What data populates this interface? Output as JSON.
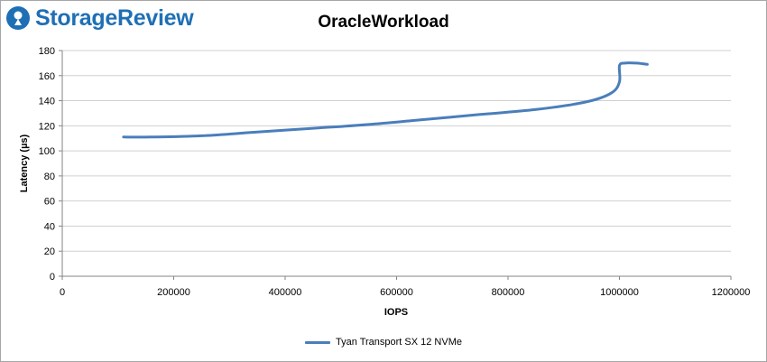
{
  "brand": {
    "name": "StorageReview",
    "color": "#1f6fb5"
  },
  "chart_data": {
    "type": "line",
    "title": "OracleWorkload",
    "xlabel": "IOPS",
    "ylabel": "Latency (µs)",
    "xlim": [
      0,
      1200000
    ],
    "ylim": [
      0,
      180
    ],
    "xticks": [
      0,
      200000,
      400000,
      600000,
      800000,
      1000000,
      1200000
    ],
    "yticks": [
      0,
      20,
      40,
      60,
      80,
      100,
      120,
      140,
      160,
      180
    ],
    "grid": "horizontal",
    "legend_position": "bottom",
    "series": [
      {
        "name": "Tyan Transport SX 12 NVMe",
        "color": "#4a7ebb",
        "x": [
          110000,
          160000,
          250000,
          350000,
          450000,
          550000,
          650000,
          750000,
          850000,
          940000,
          985000,
          1000000,
          1000000,
          1010000,
          1030000,
          1050000
        ],
        "y": [
          111,
          111,
          112,
          115,
          118,
          121,
          125,
          129,
          133,
          139,
          146,
          155,
          168,
          170,
          170,
          169
        ]
      }
    ]
  }
}
